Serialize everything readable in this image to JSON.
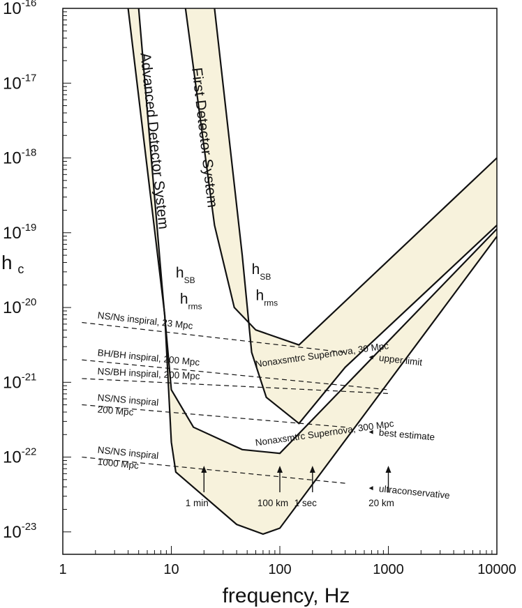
{
  "chart_data": {
    "type": "line",
    "title": "",
    "xlabel": "frequency,  Hz",
    "ylabel": "h",
    "ylabel_sub": "c",
    "xscale": "log",
    "yscale": "log",
    "xlim": [
      1,
      10000
    ],
    "ylim_exp": [
      -23.3,
      -16
    ],
    "x_ticks": [
      {
        "value": 1,
        "label": "1"
      },
      {
        "value": 10,
        "label": "10"
      },
      {
        "value": 100,
        "label": "100"
      },
      {
        "value": 1000,
        "label": "1000"
      },
      {
        "value": 10000,
        "label": "10000"
      }
    ],
    "y_ticks": [
      {
        "exp": -16,
        "base": "10",
        "sup": "-16"
      },
      {
        "exp": -17,
        "base": "10",
        "sup": "-17"
      },
      {
        "exp": -18,
        "base": "10",
        "sup": "-18"
      },
      {
        "exp": -19,
        "base": "10",
        "sup": "-19"
      },
      {
        "exp": -20,
        "base": "10",
        "sup": "-20"
      },
      {
        "exp": -21,
        "base": "10",
        "sup": "-21"
      },
      {
        "exp": -22,
        "base": "10",
        "sup": "-22"
      },
      {
        "exp": -23,
        "base": "10",
        "sup": "-23"
      }
    ],
    "series": [
      {
        "name": "First Detector System",
        "label_text": "First Detector System",
        "points": [
          [
            13.5,
            -16.0
          ],
          [
            25,
            -18.9
          ],
          [
            38,
            -20.0
          ],
          [
            60,
            -20.3
          ],
          [
            150,
            -20.5
          ],
          [
            10000,
            -18.0
          ]
        ]
      },
      {
        "name": "First Detector System (lower)",
        "points": [
          [
            25,
            -16.0
          ],
          [
            45,
            -19.3
          ],
          [
            55,
            -20.6
          ],
          [
            75,
            -21.2
          ],
          [
            150,
            -21.55
          ],
          [
            400,
            -20.8
          ],
          [
            10000,
            -18.9
          ]
        ]
      },
      {
        "name": "Advanced Detector System",
        "label_text": "Advanced Detector System",
        "points": [
          [
            5,
            -16.0
          ],
          [
            8.2,
            -19.7
          ],
          [
            10,
            -21.1
          ],
          [
            16,
            -21.6
          ],
          [
            45,
            -21.9
          ],
          [
            100,
            -21.95
          ],
          [
            10000,
            -18.95
          ]
        ]
      },
      {
        "name": "Advanced Detector System (lower)",
        "points": [
          [
            4,
            -16.0
          ],
          [
            8.7,
            -20.1
          ],
          [
            10,
            -21.8
          ],
          [
            11,
            -22.2
          ],
          [
            40,
            -22.9
          ],
          [
            70,
            -23.03
          ],
          [
            100,
            -22.95
          ],
          [
            10000,
            -19.05
          ]
        ]
      }
    ],
    "lines": [
      {
        "label": "NS/Ns inspiral, 23 Mpc",
        "points": [
          [
            1.5,
            -20.2
          ],
          [
            400,
            -20.6
          ]
        ],
        "end_label": "upper limit"
      },
      {
        "label": "BH/BH inspiral, 200 Mpc",
        "points": [
          [
            1.5,
            -20.7
          ],
          [
            1000,
            -21.1
          ]
        ],
        "end_label": ""
      },
      {
        "label": "NS/BH inspiral, 200 Mpc",
        "points": [
          [
            1.5,
            -20.95
          ],
          [
            1000,
            -21.15
          ]
        ],
        "end_label": ""
      },
      {
        "label": "NS/NS inspiral",
        "label2": "200 Mpc",
        "points": [
          [
            1.5,
            -21.3
          ],
          [
            400,
            -21.6
          ]
        ],
        "end_label": "best estimate"
      },
      {
        "label": "NS/NS inspiral",
        "label2": "1000 Mpc",
        "points": [
          [
            1.5,
            -22.0
          ],
          [
            400,
            -22.35
          ]
        ],
        "end_label": "ultraconservative"
      }
    ],
    "annotations": [
      {
        "text": "h",
        "sub": "SB",
        "x": 11,
        "y": -19.6
      },
      {
        "text": "h",
        "sub": "rms",
        "x": 12,
        "y": -19.95
      },
      {
        "text": "h",
        "sub": "SB",
        "x": 55,
        "y": -19.55
      },
      {
        "text": "h",
        "sub": "rms",
        "x": 60,
        "y": -19.9
      },
      {
        "text": "Nonaxsmtrc Supernova, 30 Mpc",
        "x": 60,
        "y": -20.8
      },
      {
        "text": "Nonaxsmtrc Supernova, 300 Mpc",
        "x": 60,
        "y": -21.85
      }
    ],
    "markers": [
      {
        "text": "1 min",
        "x": 20
      },
      {
        "text": "100 km",
        "x": 100
      },
      {
        "text": "1 sec",
        "x": 200
      },
      {
        "text": "20 km",
        "x": 1000
      }
    ]
  }
}
